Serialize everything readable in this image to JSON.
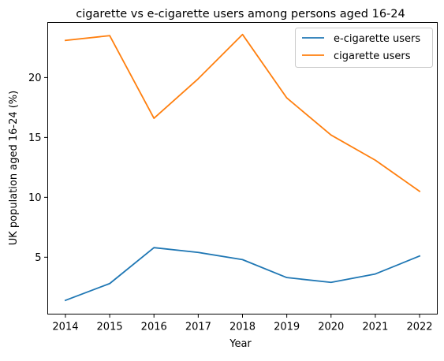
{
  "chart_data": {
    "type": "line",
    "title": "cigarette vs e-cigarette users among persons aged 16-24",
    "xlabel": "Year",
    "ylabel": "UK population aged 16-24 (%)",
    "x": [
      2014,
      2015,
      2016,
      2017,
      2018,
      2019,
      2020,
      2021,
      2022
    ],
    "x_ticks": [
      "2014",
      "2015",
      "2016",
      "2017",
      "2018",
      "2019",
      "2020",
      "2021",
      "2022"
    ],
    "y_ticks": [
      "5",
      "10",
      "15",
      "20"
    ],
    "y_tick_values": [
      5,
      10,
      15,
      20
    ],
    "xlim": [
      2013.6,
      2022.4
    ],
    "ylim": [
      0.25,
      24.6
    ],
    "grid": false,
    "legend_position": "top-right",
    "series": [
      {
        "name": "e-cigarette users",
        "color": "#1f77b4",
        "values": [
          1.4,
          2.8,
          5.8,
          5.4,
          4.8,
          3.3,
          2.9,
          3.6,
          5.1
        ]
      },
      {
        "name": "cigarette users",
        "color": "#ff7f0e",
        "values": [
          23.1,
          23.5,
          16.6,
          19.9,
          23.6,
          18.3,
          15.2,
          13.1,
          10.5
        ]
      }
    ]
  }
}
